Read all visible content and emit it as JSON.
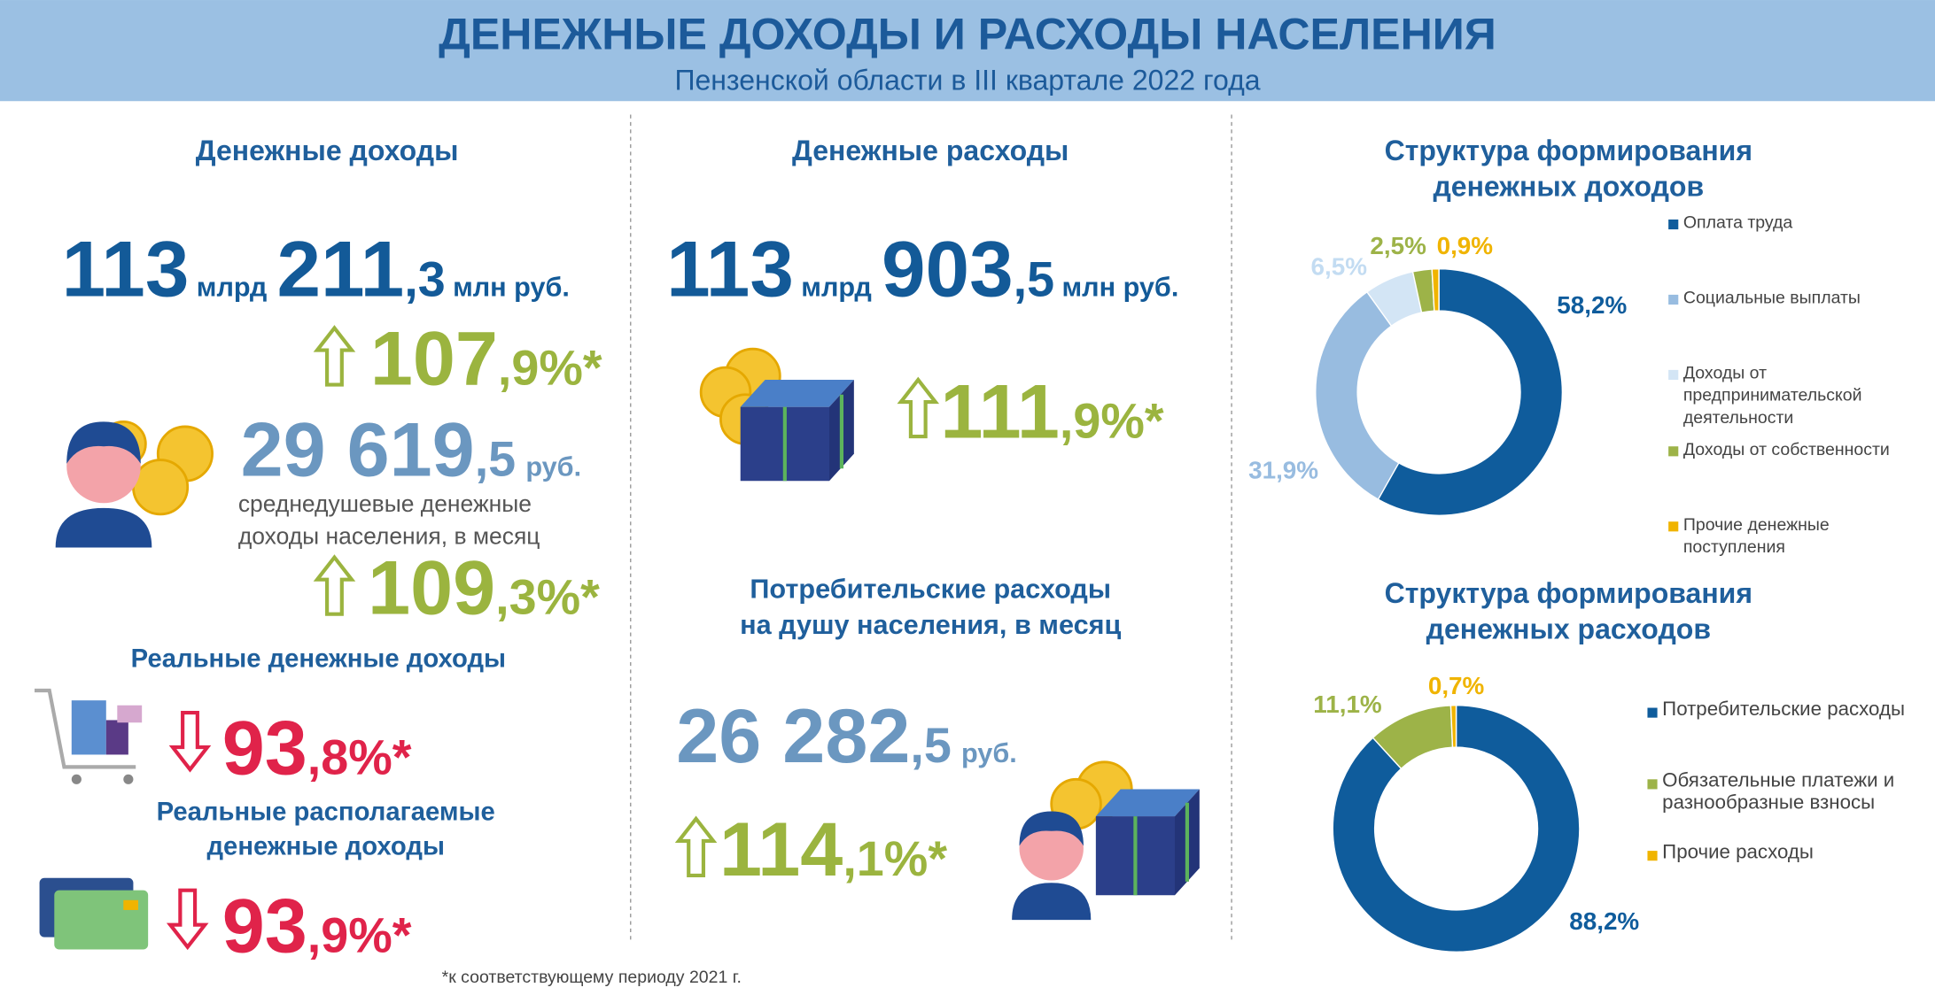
{
  "header": {
    "title": "ДЕНЕЖНЫЕ ДОХОДЫ И РАСХОДЫ НАСЕЛЕНИЯ",
    "subtitle": "Пензенской области в III квартале 2022 года"
  },
  "income": {
    "title": "Денежные доходы",
    "total": [
      "113",
      "млрд",
      "211",
      ",3",
      "млн руб."
    ],
    "growth": [
      "107",
      ",9%*"
    ],
    "per_capita": [
      "29 619",
      ",5",
      "руб."
    ],
    "per_capita_note": [
      "среднедушевые денежные",
      "доходы населения, в месяц"
    ],
    "per_capita_growth": [
      "109",
      ",3%*"
    ],
    "real_title": "Реальные денежные доходы",
    "real": [
      "93",
      ",8%*"
    ],
    "disposable_title": [
      "Реальные располагаемые",
      "денежные доходы"
    ],
    "disposable": [
      "93",
      ",9%*"
    ]
  },
  "expenses": {
    "title": "Денежные расходы",
    "total": [
      "113",
      "млрд",
      "903",
      ",5",
      "млн руб."
    ],
    "growth": [
      "111",
      ",9%*"
    ],
    "consumer_title": [
      "Потребительские расходы",
      "на душу населения, в месяц"
    ],
    "consumer": [
      "26 282",
      ",5",
      "руб."
    ],
    "consumer_growth": [
      "114",
      ",1%*"
    ]
  },
  "footnote": "*к соответствующему периоду 2021 г.",
  "chart_data": [
    {
      "type": "donut",
      "title": [
        "Структура формирования",
        "денежных доходов"
      ],
      "categories": [
        "Оплата труда",
        "Социальные  выплаты",
        "Доходы от предпринимательской деятельности",
        "Доходы от собственности",
        "Прочие денежные поступления"
      ],
      "values": [
        58.2,
        31.9,
        6.5,
        2.5,
        0.9
      ],
      "value_labels": [
        "58,2%",
        "31,9%",
        "6,5%",
        "2,5%",
        "0,9%"
      ],
      "colors": [
        "#0f5c9c",
        "#98bce0",
        "#d3e5f5",
        "#9db348",
        "#f0b400"
      ]
    },
    {
      "type": "donut",
      "title": [
        "Структура формирования",
        "денежных расходов"
      ],
      "categories": [
        "Потребительские расходы",
        "Обязательные платежи и разнообразные взносы",
        "Прочие расходы"
      ],
      "values": [
        88.2,
        11.1,
        0.7
      ],
      "value_labels": [
        "88,2%",
        "11,1%",
        "0,7%"
      ],
      "colors": [
        "#0f5c9c",
        "#9db348",
        "#f0b400"
      ]
    }
  ]
}
